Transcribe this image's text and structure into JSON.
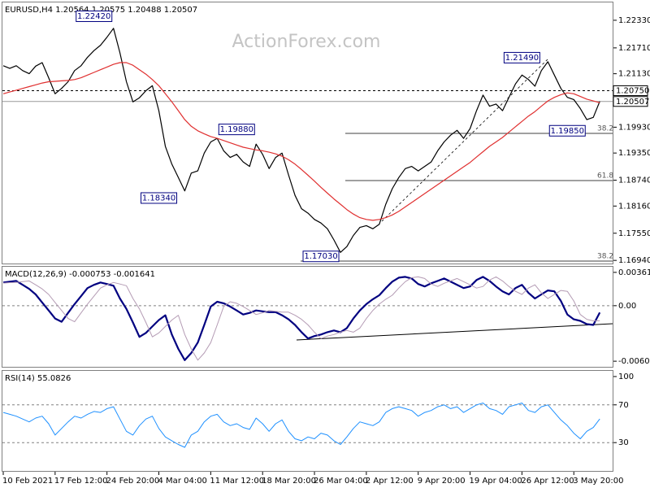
{
  "chart_data": [
    {
      "type": "line",
      "title": "EURUSD,H4 1.20564 1.20575 1.20488 1.20507",
      "watermark": "ActionForex.com",
      "ylim": [
        1.1687,
        1.2273
      ],
      "yticks": [
        {
          "value": 1.2233,
          "label": "1.22330"
        },
        {
          "value": 1.2171,
          "label": "1.21710"
        },
        {
          "value": 1.2113,
          "label": "1.21130"
        },
        {
          "value": 1.1993,
          "label": "1.19930"
        },
        {
          "value": 1.1935,
          "label": "1.19350"
        },
        {
          "value": 1.1874,
          "label": "1.18740"
        },
        {
          "value": 1.1816,
          "label": "1.18160"
        },
        {
          "value": 1.1755,
          "label": "1.17550"
        },
        {
          "value": 1.1694,
          "label": "1.16940"
        }
      ],
      "series": [
        {
          "color": "#000000",
          "values": [
            1.2131,
            1.2125,
            1.2131,
            1.212,
            1.2113,
            1.213,
            1.2138,
            1.2104,
            1.2068,
            1.208,
            1.2095,
            1.212,
            1.2131,
            1.215,
            1.2165,
            1.2177,
            1.2195,
            1.2215,
            1.216,
            1.2095,
            1.205,
            1.2059,
            1.2075,
            1.2086,
            1.203,
            1.195,
            1.191,
            1.188,
            1.185,
            1.189,
            1.1895,
            1.1935,
            1.196,
            1.1968,
            1.194,
            1.1925,
            1.1932,
            1.1915,
            1.1905,
            1.1955,
            1.1932,
            1.19,
            1.1925,
            1.1935,
            1.1886,
            1.184,
            1.181,
            1.18,
            1.1786,
            1.1778,
            1.1765,
            1.174,
            1.1712,
            1.1725,
            1.175,
            1.1768,
            1.1772,
            1.1765,
            1.1775,
            1.182,
            1.1855,
            1.188,
            1.19,
            1.1905,
            1.1895,
            1.1905,
            1.1915,
            1.194,
            1.196,
            1.1975,
            1.1986,
            1.1968,
            1.199,
            1.203,
            1.2065,
            1.204,
            1.2045,
            1.203,
            1.206,
            1.209,
            1.211,
            1.21,
            1.2085,
            1.212,
            1.214,
            1.211,
            1.208,
            1.206,
            1.2055,
            1.2035,
            1.201,
            1.2015,
            1.2051
          ]
        },
        {
          "color": "#e03030",
          "values": [
            1.2068,
            1.2072,
            1.2076,
            1.208,
            1.2084,
            1.2088,
            1.2092,
            1.2095,
            1.2096,
            1.2097,
            1.2098,
            1.21,
            1.2104,
            1.211,
            1.2116,
            1.2122,
            1.2128,
            1.2134,
            1.2138,
            1.2138,
            1.2132,
            1.2122,
            1.2112,
            1.21,
            1.2086,
            1.2068,
            1.205,
            1.203,
            1.201,
            1.1995,
            1.1985,
            1.1978,
            1.1972,
            1.1968,
            1.1963,
            1.1958,
            1.1953,
            1.1948,
            1.1945,
            1.1942,
            1.194,
            1.1937,
            1.1933,
            1.1928,
            1.192,
            1.191,
            1.1898,
            1.1885,
            1.1872,
            1.1858,
            1.1845,
            1.1832,
            1.182,
            1.1808,
            1.1798,
            1.179,
            1.1786,
            1.1784,
            1.1786,
            1.179,
            1.1796,
            1.1804,
            1.1814,
            1.1824,
            1.1834,
            1.1844,
            1.1854,
            1.1864,
            1.1874,
            1.1884,
            1.1894,
            1.1904,
            1.1914,
            1.1926,
            1.1938,
            1.195,
            1.196,
            1.197,
            1.1982,
            1.1994,
            1.2006,
            1.2018,
            1.2028,
            1.204,
            1.2052,
            1.206,
            1.2066,
            1.207,
            1.2068,
            1.2062,
            1.2056,
            1.2052,
            1.2048
          ]
        }
      ],
      "annotations": [
        {
          "index": 14,
          "value": 1.2242,
          "label": "1.22420"
        },
        {
          "index": 36,
          "value": 1.1988,
          "label": "1.19880"
        },
        {
          "index": 24,
          "value": 1.1834,
          "label": "1.18340"
        },
        {
          "index": 49,
          "value": 1.1703,
          "label": "1.17030"
        },
        {
          "index": 80,
          "value": 1.2149,
          "label": "1.21490"
        },
        {
          "index": 87,
          "value": 1.1985,
          "label": "1.19850"
        }
      ],
      "price_lines": [
        {
          "value": 1.2075,
          "label": "1.20750",
          "style": "dashed"
        },
        {
          "value": 1.20507,
          "label": "1.20507",
          "style": "solid"
        }
      ],
      "fib_labels": [
        "38.2",
        "61.8",
        "38.2"
      ]
    },
    {
      "type": "line",
      "title": "MACD(12,26,9) -0.000753 -0.001641",
      "ylim": [
        -0.006634,
        0.004223
      ],
      "yticks": [
        0.003615,
        {
          "value": 0,
          "label": "0.00"
        },
        -0.006026
      ],
      "levels": [
        0
      ],
      "series": [
        {
          "color": "#000080",
          "width": 2.2,
          "values": [
            0.00252,
            0.00261,
            0.00269,
            0.00226,
            0.00182,
            0.00122,
            0.00035,
            -0.00052,
            -0.00139,
            -0.00174,
            -0.00078,
            0.00017,
            0.00104,
            0.00191,
            0.00226,
            0.00252,
            0.00235,
            0.00217,
            0.00078,
            -0.00035,
            -0.00182,
            -0.00339,
            -0.00295,
            -0.00226,
            -0.00156,
            -0.00104,
            -0.00313,
            -0.00469,
            -0.00591,
            -0.00513,
            -0.004,
            -0.00209,
            -9e-05,
            0.00043,
            0.00026,
            -9e-05,
            -0.00052,
            -0.00096,
            -0.00078,
            -0.00052,
            -0.00061,
            -0.0007,
            -0.0007,
            -0.00104,
            -0.00148,
            -0.00209,
            -0.00287,
            -0.00356,
            -0.0033,
            -0.00313,
            -0.00287,
            -0.00269,
            -0.00287,
            -0.00243,
            -0.00139,
            -0.00052,
            0.00017,
            0.0007,
            0.00113,
            0.00191,
            0.00261,
            0.00304,
            0.00313,
            0.00295,
            0.00235,
            0.00209,
            0.00243,
            0.00269,
            0.00295,
            0.00261,
            0.00226,
            0.00191,
            0.00209,
            0.00278,
            0.00313,
            0.00269,
            0.00209,
            0.00156,
            0.00122,
            0.00191,
            0.00226,
            0.00139,
            0.00078,
            0.00122,
            0.00165,
            0.00156,
            0.00052,
            -0.00096,
            -0.00148,
            -0.00165,
            -0.002,
            -0.00209,
            -0.00075
          ]
        },
        {
          "color": "#b49bb4",
          "width": 1,
          "values": [
            0.00245,
            0.0025,
            0.00252,
            0.00261,
            0.00269,
            0.00226,
            0.00182,
            0.00122,
            0.00035,
            -0.00052,
            -0.00139,
            -0.00174,
            -0.00078,
            0.00017,
            0.00104,
            0.00191,
            0.00226,
            0.00252,
            0.00235,
            0.00217,
            0.00078,
            -0.00035,
            -0.00182,
            -0.00339,
            -0.00295,
            -0.00226,
            -0.00156,
            -0.00104,
            -0.00313,
            -0.00469,
            -0.00591,
            -0.00513,
            -0.004,
            -0.00209,
            -9e-05,
            0.00043,
            0.00026,
            -9e-05,
            -0.00052,
            -0.00096,
            -0.00078,
            -0.00052,
            -0.00061,
            -0.0007,
            -0.0007,
            -0.00104,
            -0.00148,
            -0.00209,
            -0.00287,
            -0.00356,
            -0.0033,
            -0.00313,
            -0.00287,
            -0.00269,
            -0.00287,
            -0.00243,
            -0.00139,
            -0.00052,
            0.00017,
            0.0007,
            0.00113,
            0.00191,
            0.00261,
            0.00304,
            0.00313,
            0.00295,
            0.00235,
            0.00209,
            0.00243,
            0.00269,
            0.00295,
            0.00261,
            0.00226,
            0.00191,
            0.00209,
            0.00278,
            0.00313,
            0.00269,
            0.00209,
            0.00156,
            0.00122,
            0.00191,
            0.00226,
            0.00139,
            0.00078,
            0.00122,
            0.00165,
            0.00156,
            0.00052,
            -0.00096,
            -0.00148,
            -0.00165,
            -0.00164
          ]
        }
      ]
    },
    {
      "type": "line",
      "title": "RSI(14) 55.0826",
      "ylim": [
        0,
        106
      ],
      "yticks": [
        100,
        70,
        30
      ],
      "levels": [
        70,
        30
      ],
      "categories": [
        "10 Feb 2021",
        null,
        null,
        null,
        null,
        null,
        null,
        null,
        "17 Feb 12:00",
        null,
        null,
        null,
        null,
        null,
        null,
        null,
        "24 Feb 20:00",
        null,
        null,
        null,
        null,
        null,
        null,
        null,
        "4 Mar 04:00",
        null,
        null,
        null,
        null,
        null,
        null,
        null,
        "11 Mar 12:00",
        null,
        null,
        null,
        null,
        null,
        null,
        null,
        "18 Mar 20:00",
        null,
        null,
        null,
        null,
        null,
        null,
        null,
        "26 Mar 04:00",
        null,
        null,
        null,
        null,
        null,
        null,
        null,
        "2 Apr 12:00",
        null,
        null,
        null,
        null,
        null,
        null,
        null,
        "9 Apr 20:00",
        null,
        null,
        null,
        null,
        null,
        null,
        null,
        "19 Apr 04:00",
        null,
        null,
        null,
        null,
        null,
        null,
        null,
        "26 Apr 12:00",
        null,
        null,
        null,
        null,
        null,
        null,
        null,
        "3 May 20:00",
        null,
        null,
        null,
        null
      ],
      "series": [
        {
          "color": "#1e90ff",
          "width": 1,
          "values": [
            62,
            60,
            58,
            55,
            52,
            56,
            58,
            50,
            38,
            45,
            52,
            58,
            56,
            60,
            63,
            62,
            66,
            68,
            55,
            42,
            38,
            48,
            55,
            58,
            45,
            36,
            32,
            28,
            25,
            38,
            42,
            52,
            58,
            60,
            52,
            48,
            50,
            46,
            44,
            56,
            50,
            42,
            50,
            54,
            42,
            34,
            32,
            36,
            34,
            40,
            38,
            32,
            28,
            36,
            45,
            52,
            50,
            48,
            52,
            62,
            66,
            68,
            66,
            64,
            58,
            62,
            64,
            68,
            70,
            66,
            68,
            62,
            66,
            70,
            72,
            66,
            64,
            60,
            68,
            70,
            72,
            64,
            62,
            68,
            70,
            62,
            54,
            48,
            40,
            34,
            42,
            46,
            55.0826
          ]
        }
      ]
    }
  ]
}
